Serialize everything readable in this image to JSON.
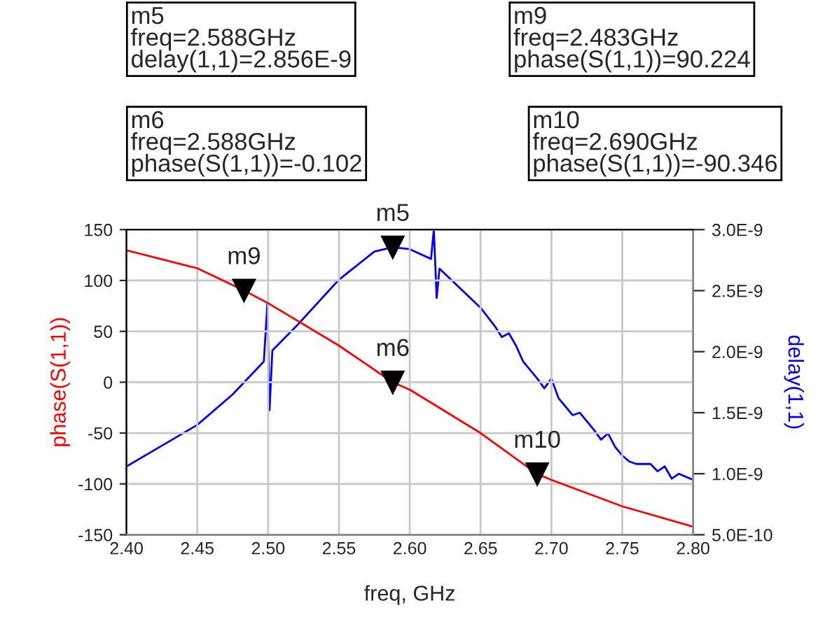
{
  "chart_data": {
    "type": "line",
    "xlabel": "freq, GHz",
    "ylabel": "phase(S(1,1))",
    "y2label": "delay(1,1)",
    "xlim": [
      2.4,
      2.8
    ],
    "xticks": [
      {
        "value": 2.4,
        "label": "2.40"
      },
      {
        "value": 2.45,
        "label": "2.45"
      },
      {
        "value": 2.5,
        "label": "2.50"
      },
      {
        "value": 2.55,
        "label": "2.55"
      },
      {
        "value": 2.6,
        "label": "2.60"
      },
      {
        "value": 2.65,
        "label": "2.65"
      },
      {
        "value": 2.7,
        "label": "2.70"
      },
      {
        "value": 2.75,
        "label": "2.75"
      },
      {
        "value": 2.8,
        "label": "2.80"
      }
    ],
    "ylim": [
      -150,
      150
    ],
    "yticks": [
      -150,
      -100,
      -50,
      0,
      50,
      100,
      150
    ],
    "y2lim": [
      5e-10,
      3e-09
    ],
    "y2ticks": [
      {
        "value": 5e-10,
        "label": "5.0E-10"
      },
      {
        "value": 1e-09,
        "label": "1.0E-9"
      },
      {
        "value": 1.5e-09,
        "label": "1.5E-9"
      },
      {
        "value": 2e-09,
        "label": "2.0E-9"
      },
      {
        "value": 2.5e-09,
        "label": "2.5E-9"
      },
      {
        "value": 3e-09,
        "label": "3.0E-9"
      }
    ],
    "grid": true,
    "marker": "none",
    "line_style": "solid",
    "series": [
      {
        "color": "#ff0000",
        "x": [
          2.4,
          2.45,
          2.483,
          2.5,
          2.55,
          2.588,
          2.6,
          2.65,
          2.69,
          2.7,
          2.75,
          2.8
        ],
        "values": [
          129.7,
          112,
          90.2,
          77.7,
          36,
          -0.1,
          -7.3,
          -50,
          -90.3,
          -96,
          -122,
          -142
        ]
      },
      {
        "color": "#0000ff",
        "axis": "y2",
        "x": [
          2.4,
          2.45,
          2.475,
          2.497,
          2.4995,
          2.501,
          2.503,
          2.52,
          2.55,
          2.575,
          2.588,
          2.6,
          2.615,
          2.617,
          2.619,
          2.621,
          2.65,
          2.66,
          2.665,
          2.67,
          2.675,
          2.68,
          2.69,
          2.695,
          2.7,
          2.705,
          2.71,
          2.715,
          2.72,
          2.73,
          2.735,
          2.74,
          2.745,
          2.75,
          2.755,
          2.76,
          2.77,
          2.775,
          2.78,
          2.785,
          2.79,
          2.8
        ],
        "values": [
          1.06e-09,
          1.4e-09,
          1.65e-09,
          1.92e-09,
          2.4e-09,
          1.52e-09,
          2.01e-09,
          2.21e-09,
          2.59e-09,
          2.82e-09,
          2.856e-09,
          2.84e-09,
          2.76e-09,
          3e-09,
          2.44e-09,
          2.68e-09,
          2.36e-09,
          2.21e-09,
          2.12e-09,
          2.15e-09,
          2.05e-09,
          1.92e-09,
          1.78e-09,
          1.7e-09,
          1.78e-09,
          1.62e-09,
          1.55e-09,
          1.48e-09,
          1.5e-09,
          1.36e-09,
          1.28e-09,
          1.33e-09,
          1.22e-09,
          1.15e-09,
          1.1e-09,
          1.08e-09,
          1.08e-09,
          1.02e-09,
          1.06e-09,
          9.6e-10,
          1e-09,
          9.5e-10
        ]
      }
    ],
    "annotations": [
      "m5\nfreq=2.588GHz\ndelay(1,1)=2.856E-9",
      "m6\nfreq=2.588GHz\nphase(S(1,1))=-0.102",
      "m9\nfreq=2.483GHz\nphase(S(1,1))=90.224",
      "m10\nfreq=2.690GHz\nphase(S(1,1))=-90.346",
      {
        "text": "m5",
        "x": 2.588,
        "y": 132.7
      },
      {
        "text": "m6",
        "x": 2.588,
        "y": -0.1
      },
      {
        "text": "m9",
        "x": 2.483,
        "y": 90.2
      },
      {
        "text": "m10",
        "x": 2.69,
        "y": -90.3
      }
    ]
  }
}
